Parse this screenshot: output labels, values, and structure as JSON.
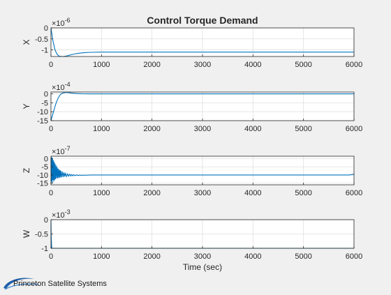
{
  "figure_title": "Control Torque Demand",
  "brand": {
    "text": "Princeton Satellite Systems",
    "logo_icon": "swoosh-logo-icon",
    "logo_color": "#1f5fa8"
  },
  "colors": {
    "line": "#0072bd",
    "axes_bg": "#ffffff",
    "figure_bg": "#f0f0f0",
    "grid": "#dfdfdf",
    "axis": "#262626"
  },
  "chart_data": [
    {
      "type": "line",
      "title": "Control Torque Demand",
      "ylabel": "X",
      "xlabel": "",
      "exponent": "×10",
      "exponent_power": "-6",
      "xlim": [
        0,
        6000
      ],
      "ylim": [
        -1.3,
        0
      ],
      "xticks": [
        "0",
        "1000",
        "2000",
        "3000",
        "4000",
        "5000",
        "6000"
      ],
      "yticks": [
        "0",
        "-0.5",
        "-1"
      ],
      "ytick_values": [
        0,
        -0.5,
        -1
      ],
      "grid": true,
      "series": [
        {
          "x": [
            0,
            40,
            80,
            120,
            160,
            200,
            250,
            300,
            350,
            400,
            500,
            600,
            700,
            800,
            1000,
            1500,
            2000,
            3000,
            4000,
            5000,
            6000
          ],
          "y": [
            0,
            -0.6,
            -1.0,
            -1.2,
            -1.28,
            -1.3,
            -1.3,
            -1.28,
            -1.25,
            -1.22,
            -1.17,
            -1.14,
            -1.12,
            -1.11,
            -1.1,
            -1.1,
            -1.1,
            -1.1,
            -1.1,
            -1.1,
            -1.1
          ]
        }
      ]
    },
    {
      "type": "line",
      "ylabel": "Y",
      "xlabel": "",
      "exponent": "×10",
      "exponent_power": "-4",
      "xlim": [
        0,
        6000
      ],
      "ylim": [
        -15,
        1
      ],
      "xticks": [
        "0",
        "1000",
        "2000",
        "3000",
        "4000",
        "5000",
        "6000"
      ],
      "yticks": [
        "0",
        "-5",
        "-10",
        "-15"
      ],
      "ytick_values": [
        0,
        -5,
        -10,
        -15
      ],
      "grid": true,
      "series": [
        {
          "x": [
            0,
            20,
            50,
            80,
            110,
            140,
            170,
            200,
            250,
            300,
            350,
            400,
            500,
            600,
            800,
            1000,
            2000,
            3000,
            4000,
            5000,
            6000
          ],
          "y": [
            -15,
            -13,
            -10,
            -7,
            -4.5,
            -2.5,
            -1,
            0,
            0.6,
            0.8,
            0.7,
            0.5,
            0.2,
            0.05,
            0,
            0,
            0,
            0,
            0,
            0,
            0
          ]
        }
      ]
    },
    {
      "type": "line",
      "ylabel": "Z",
      "xlabel": "",
      "exponent": "×10",
      "exponent_power": "-7",
      "xlim": [
        0,
        6000
      ],
      "ylim": [
        -16,
        1.5
      ],
      "xticks": [
        "0",
        "1000",
        "2000",
        "3000",
        "4000",
        "5000",
        "6000"
      ],
      "yticks": [
        "0",
        "-5",
        "-10",
        "-15"
      ],
      "ytick_values": [
        0,
        -5,
        -10,
        -15
      ],
      "grid": true,
      "series": [
        {
          "x": [
            0,
            8,
            16,
            24,
            32,
            40,
            48,
            56,
            64,
            72,
            80,
            90,
            100,
            110,
            120,
            130,
            140,
            150,
            160,
            170,
            180,
            190,
            200,
            215,
            230,
            245,
            260,
            275,
            290,
            310,
            330,
            350,
            370,
            390,
            410,
            430,
            450,
            480,
            510,
            540,
            570,
            600,
            650,
            700,
            800,
            1000,
            2000,
            3000,
            4000,
            5000,
            5900,
            6000
          ],
          "y": [
            0,
            -14,
            1,
            -15,
            0,
            -13,
            -1,
            -14,
            -2,
            -13,
            -3,
            -12.5,
            -4,
            -12,
            -5,
            -12,
            -6,
            -11.8,
            -6.5,
            -11.6,
            -7,
            -11.5,
            -7.5,
            -11.4,
            -8,
            -11.2,
            -8.5,
            -11,
            -9,
            -10.9,
            -9.3,
            -10.7,
            -9.5,
            -10.6,
            -9.7,
            -10.5,
            -9.8,
            -10.4,
            -9.9,
            -10.3,
            -10,
            -10.2,
            -10.1,
            -10.1,
            -10,
            -10,
            -10,
            -10,
            -10,
            -10,
            -10,
            -9.5
          ]
        }
      ]
    },
    {
      "type": "line",
      "ylabel": "W",
      "xlabel": "Time (sec)",
      "exponent": "×10",
      "exponent_power": "-3",
      "xlim": [
        0,
        6000
      ],
      "ylim": [
        -1,
        0
      ],
      "xticks": [
        "0",
        "1000",
        "2000",
        "3000",
        "4000",
        "5000",
        "6000"
      ],
      "yticks": [
        "0",
        "-0.5",
        "-1"
      ],
      "ytick_values": [
        0,
        -0.5,
        -1
      ],
      "grid": true,
      "series": [
        {
          "x": [
            0,
            5,
            15,
            30,
            6000
          ],
          "y": [
            -0.02,
            -0.6,
            -0.98,
            -1,
            -1
          ]
        }
      ]
    }
  ]
}
